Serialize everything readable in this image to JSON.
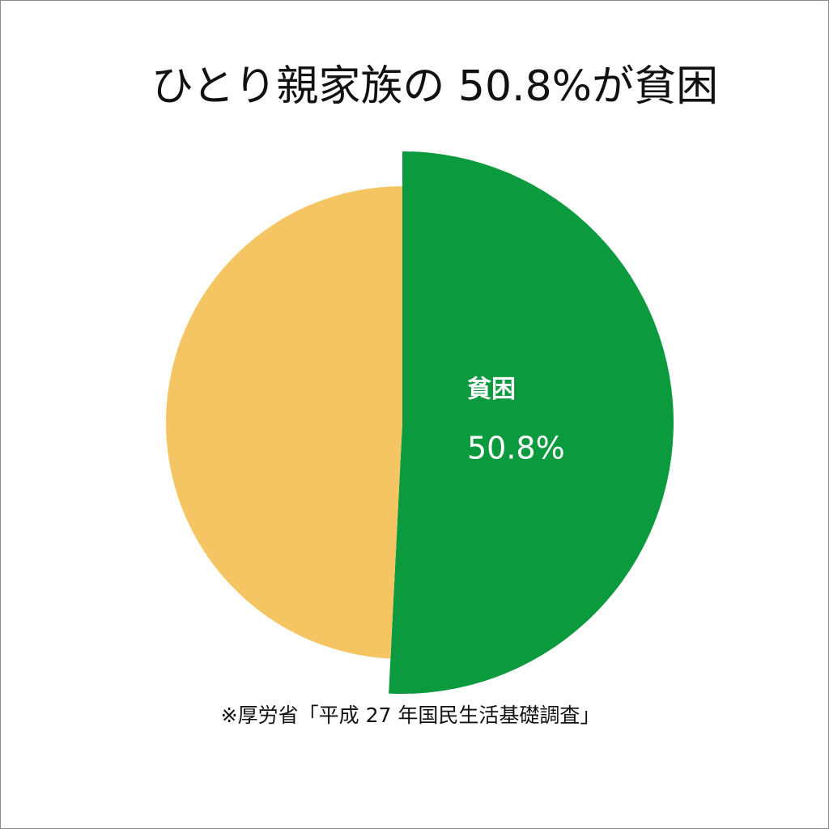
{
  "chart_data": {
    "type": "pie",
    "title": "ひとり親家族の 50.8%が貧困",
    "categories": [
      "貧困",
      null
    ],
    "values": [
      50.8,
      49.2
    ],
    "value_labels": [
      "50.8%",
      null
    ],
    "colors": [
      "#0c9a3e",
      "#f5c563"
    ],
    "source": "※厚労省「平成 27 年国民生活基礎調査」"
  }
}
